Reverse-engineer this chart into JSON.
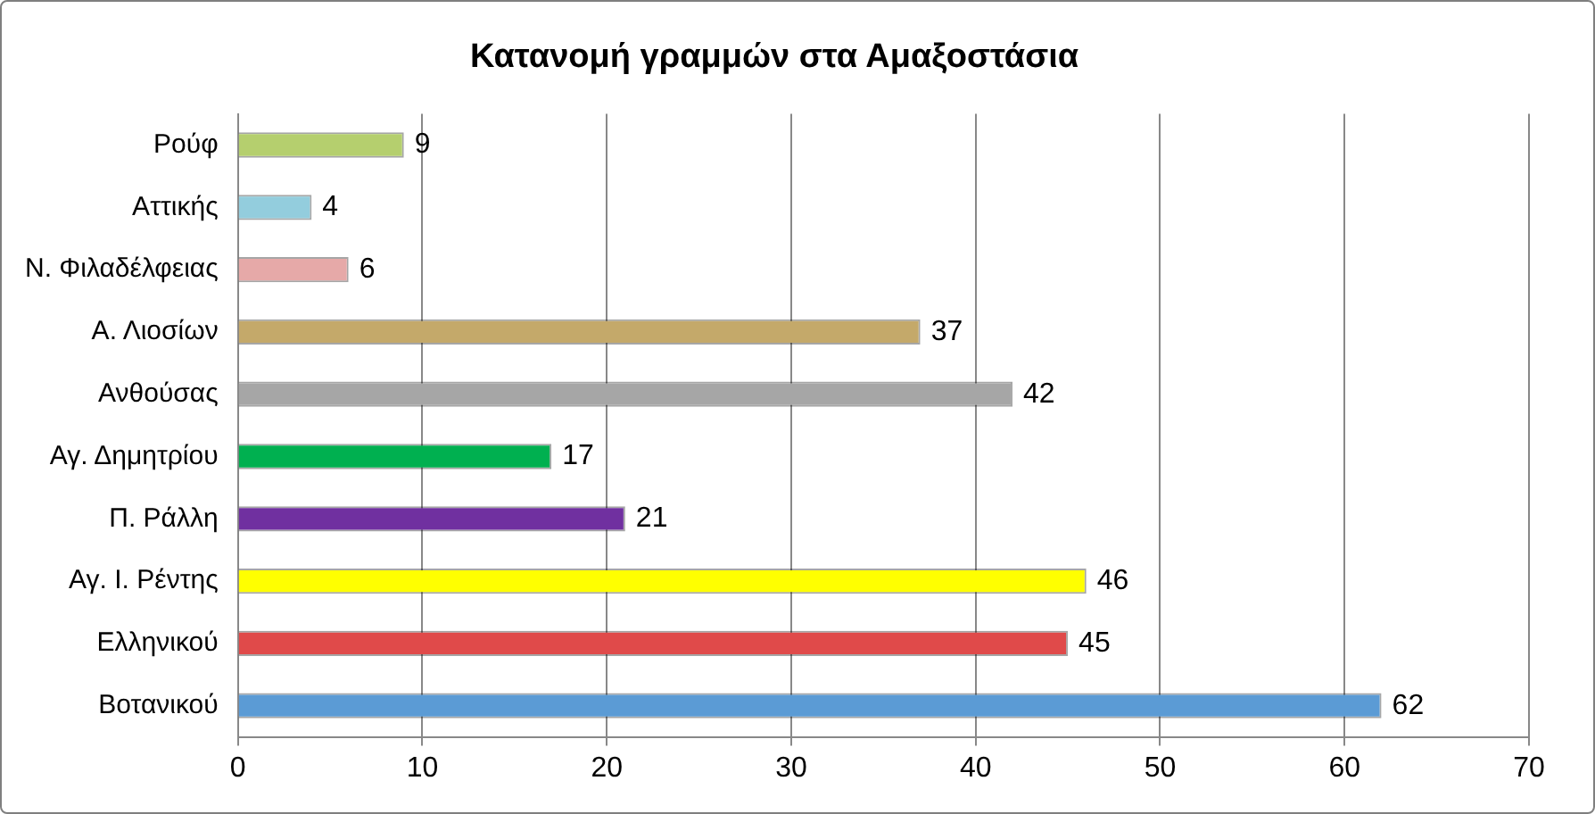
{
  "chart_data": {
    "type": "bar",
    "orientation": "horizontal",
    "title": "Κατανομή γραμμών στα Αμαξοστάσια",
    "categories": [
      "Ρούφ",
      "Αττικής",
      "Ν. Φιλαδέλφειας",
      "Α. Λιοσίων",
      "Ανθούσας",
      "Αγ. Δημητρίου",
      "Π. Ράλλη",
      "Αγ. Ι. Ρέντης",
      "Ελληνικού",
      "Βοτανικού"
    ],
    "values": [
      9,
      4,
      6,
      37,
      42,
      17,
      21,
      46,
      45,
      62
    ],
    "colors": [
      "#b5cf6e",
      "#93cddd",
      "#e6a9a8",
      "#c4a96a",
      "#a6a6a6",
      "#00b050",
      "#7030a0",
      "#ffff00",
      "#e04a4a",
      "#5b9bd5"
    ],
    "xlim": [
      0,
      70
    ],
    "xticks": [
      0,
      10,
      20,
      30,
      40,
      50,
      60,
      70
    ],
    "grid": "x",
    "legend": false,
    "data_labels": true
  }
}
